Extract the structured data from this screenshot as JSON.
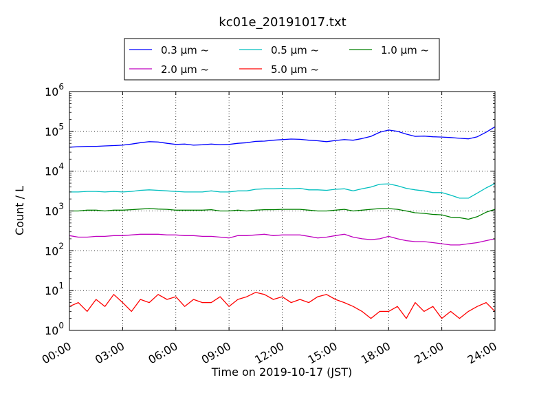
{
  "chart_data": {
    "type": "line",
    "title": "kc01e_20191017.txt",
    "xlabel": "Time on 2019-10-17 (JST)",
    "ylabel": "Count / L",
    "yscale": "log",
    "ylim": [
      1,
      1000000
    ],
    "xlim": [
      "00:00",
      "24:00"
    ],
    "grid": true,
    "legend_position": "top-center",
    "x_tick_labels": [
      "00:00",
      "03:00",
      "06:00",
      "09:00",
      "12:00",
      "15:00",
      "18:00",
      "21:00",
      "24:00"
    ],
    "y_ticks": [
      {
        "base": "10",
        "exp": "0"
      },
      {
        "base": "10",
        "exp": "1"
      },
      {
        "base": "10",
        "exp": "2"
      },
      {
        "base": "10",
        "exp": "3"
      },
      {
        "base": "10",
        "exp": "4"
      },
      {
        "base": "10",
        "exp": "5"
      },
      {
        "base": "10",
        "exp": "6"
      }
    ],
    "x": [
      "00:00",
      "00:30",
      "01:00",
      "01:30",
      "02:00",
      "02:30",
      "03:00",
      "03:30",
      "04:00",
      "04:30",
      "05:00",
      "05:30",
      "06:00",
      "06:30",
      "07:00",
      "07:30",
      "08:00",
      "08:30",
      "09:00",
      "09:30",
      "10:00",
      "10:30",
      "11:00",
      "11:30",
      "12:00",
      "12:30",
      "13:00",
      "13:30",
      "14:00",
      "14:30",
      "15:00",
      "15:30",
      "16:00",
      "16:30",
      "17:00",
      "17:30",
      "18:00",
      "18:30",
      "19:00",
      "19:30",
      "20:00",
      "20:30",
      "21:00",
      "21:30",
      "22:00",
      "22:30",
      "23:00",
      "23:30",
      "24:00"
    ],
    "series": [
      {
        "name": "0.3 µm ~",
        "color": "#0000ff",
        "values": [
          40000,
          41000,
          42000,
          42000,
          43000,
          44000,
          45000,
          48000,
          52000,
          55000,
          54000,
          50000,
          47000,
          48000,
          45000,
          46000,
          48000,
          46000,
          47000,
          50000,
          52000,
          56000,
          57000,
          60000,
          62000,
          64000,
          63000,
          60000,
          58000,
          55000,
          59000,
          62000,
          60000,
          66000,
          75000,
          95000,
          108000,
          100000,
          85000,
          75000,
          76000,
          73000,
          72000,
          70000,
          67000,
          65000,
          73000,
          95000,
          130000
        ]
      },
      {
        "name": "0.5 µm ~",
        "color": "#00bfbf",
        "values": [
          3000,
          3000,
          3100,
          3100,
          3000,
          3100,
          3000,
          3100,
          3300,
          3400,
          3300,
          3200,
          3100,
          3000,
          3000,
          3000,
          3200,
          3000,
          3000,
          3200,
          3200,
          3500,
          3600,
          3600,
          3700,
          3600,
          3700,
          3400,
          3400,
          3300,
          3500,
          3600,
          3200,
          3600,
          4000,
          4700,
          4800,
          4300,
          3700,
          3400,
          3200,
          2900,
          2900,
          2500,
          2100,
          2100,
          2800,
          3800,
          4900
        ]
      },
      {
        "name": "1.0 µm ~",
        "color": "#008000",
        "values": [
          1000,
          1000,
          1050,
          1050,
          1000,
          1050,
          1050,
          1080,
          1120,
          1150,
          1120,
          1100,
          1050,
          1050,
          1050,
          1050,
          1080,
          1000,
          1000,
          1050,
          1000,
          1050,
          1080,
          1080,
          1100,
          1100,
          1100,
          1050,
          1000,
          1000,
          1050,
          1100,
          1000,
          1050,
          1100,
          1150,
          1150,
          1100,
          1000,
          900,
          870,
          820,
          800,
          700,
          680,
          620,
          720,
          930,
          1100
        ]
      },
      {
        "name": "2.0 µm ~",
        "color": "#bf00bf",
        "values": [
          240,
          220,
          220,
          230,
          230,
          240,
          240,
          250,
          260,
          260,
          260,
          250,
          250,
          240,
          240,
          230,
          230,
          220,
          210,
          240,
          240,
          250,
          260,
          240,
          250,
          250,
          250,
          230,
          210,
          220,
          240,
          260,
          220,
          200,
          190,
          200,
          230,
          200,
          180,
          170,
          170,
          160,
          150,
          140,
          140,
          150,
          160,
          180,
          200
        ]
      },
      {
        "name": "5.0 µm ~",
        "color": "#ff0000",
        "values": [
          4,
          5,
          3,
          6,
          4,
          8,
          5,
          3,
          6,
          5,
          8,
          6,
          7,
          4,
          6,
          5,
          5,
          7,
          4,
          6,
          7,
          9,
          8,
          6,
          7,
          5,
          6,
          5,
          7,
          8,
          6,
          5,
          4,
          3,
          2,
          3,
          3,
          4,
          2,
          5,
          3,
          4,
          2,
          3,
          2,
          3,
          4,
          5,
          3
        ]
      }
    ]
  }
}
